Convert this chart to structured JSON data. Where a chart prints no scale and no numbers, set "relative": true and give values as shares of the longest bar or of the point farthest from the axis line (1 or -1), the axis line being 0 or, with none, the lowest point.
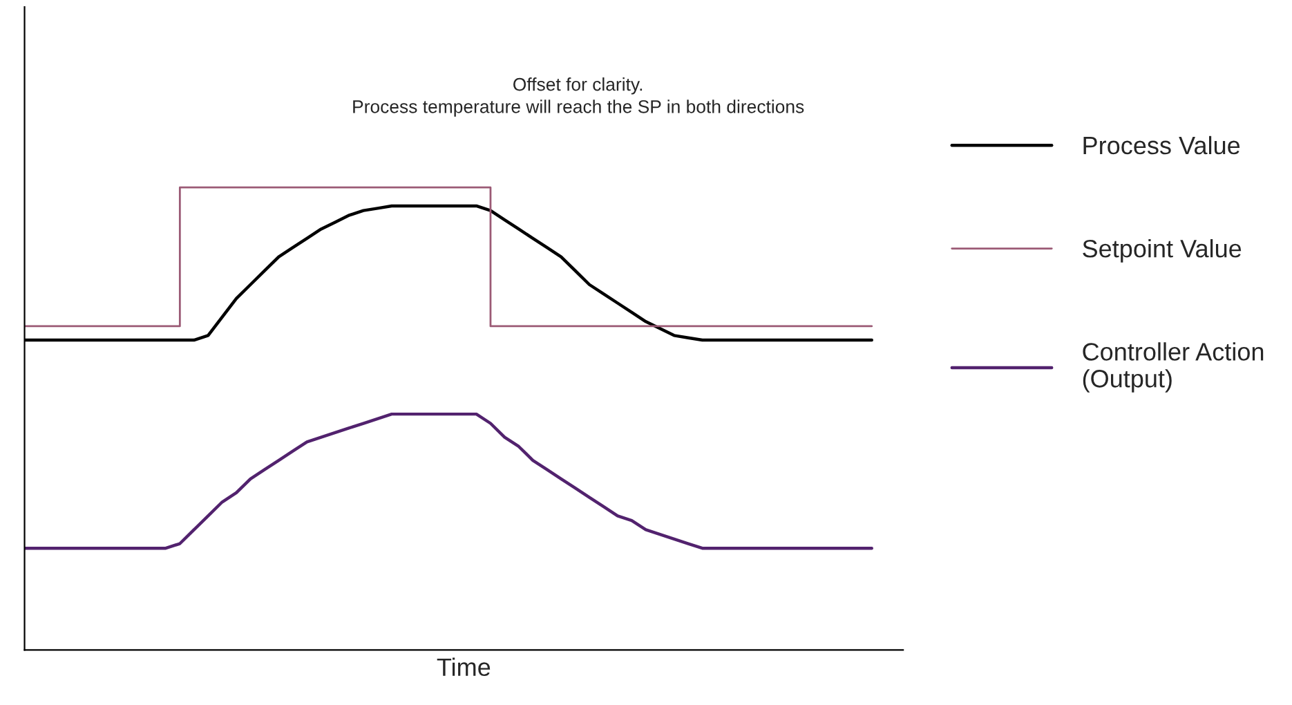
{
  "chart_data": {
    "type": "line",
    "relative": true,
    "xlabel": "Time",
    "annotations": [
      "Offset for clarity.\nProcess temperature will reach the SP in both directions"
    ],
    "categories": [
      null,
      null,
      null,
      null,
      null,
      null,
      null,
      null,
      null,
      null,
      null,
      null,
      null,
      null,
      null,
      null,
      null,
      null,
      null,
      null,
      null,
      null,
      null,
      null,
      null,
      null,
      null,
      null,
      null,
      null,
      null,
      null,
      null,
      null,
      null,
      null,
      null,
      null,
      null,
      null,
      null,
      null,
      null,
      null,
      null,
      null,
      null,
      null,
      null,
      null,
      null,
      null,
      null,
      null,
      null,
      null,
      null,
      null,
      null,
      null,
      null
    ],
    "legend": "right",
    "marker": "none",
    "line_style": "solid",
    "series": [
      {
        "name": "Process Value",
        "color": "#000000",
        "values": [
          0.67,
          0.67,
          0.67,
          0.67,
          0.67,
          0.67,
          0.67,
          0.67,
          0.67,
          0.67,
          0.67,
          0.67,
          0.67,
          0.68,
          0.72,
          0.76,
          0.79,
          0.82,
          0.85,
          0.87,
          0.89,
          0.91,
          0.925,
          0.94,
          0.95,
          0.955,
          0.96,
          0.96,
          0.96,
          0.96,
          0.96,
          0.96,
          0.96,
          0.95,
          0.93,
          0.91,
          0.89,
          0.87,
          0.85,
          0.82,
          0.79,
          0.77,
          0.75,
          0.73,
          0.71,
          0.695,
          0.68,
          0.675,
          0.67,
          0.67,
          0.67,
          0.67,
          0.67,
          0.67,
          0.67,
          0.67,
          0.67,
          0.67,
          0.67,
          0.67,
          0.67
        ]
      },
      {
        "name": "Setpoint Value",
        "color": "#9b5a75",
        "type": "step",
        "values": [
          0.7,
          0.7,
          0.7,
          0.7,
          0.7,
          0.7,
          0.7,
          0.7,
          0.7,
          0.7,
          0.7,
          1.0,
          1.0,
          1.0,
          1.0,
          1.0,
          1.0,
          1.0,
          1.0,
          1.0,
          1.0,
          1.0,
          1.0,
          1.0,
          1.0,
          1.0,
          1.0,
          1.0,
          1.0,
          1.0,
          1.0,
          1.0,
          1.0,
          0.7,
          0.7,
          0.7,
          0.7,
          0.7,
          0.7,
          0.7,
          0.7,
          0.7,
          0.7,
          0.7,
          0.7,
          0.7,
          0.7,
          0.7,
          0.7,
          0.7,
          0.7,
          0.7,
          0.7,
          0.7,
          0.7,
          0.7,
          0.7,
          0.7,
          0.7,
          0.7,
          0.7
        ]
      },
      {
        "name": "Controller Action\n(Output)",
        "color": "#52226e",
        "values": [
          0.22,
          0.22,
          0.22,
          0.22,
          0.22,
          0.22,
          0.22,
          0.22,
          0.22,
          0.22,
          0.22,
          0.23,
          0.26,
          0.29,
          0.32,
          0.34,
          0.37,
          0.39,
          0.41,
          0.43,
          0.45,
          0.46,
          0.47,
          0.48,
          0.49,
          0.5,
          0.51,
          0.51,
          0.51,
          0.51,
          0.51,
          0.51,
          0.51,
          0.49,
          0.46,
          0.44,
          0.41,
          0.39,
          0.37,
          0.35,
          0.33,
          0.31,
          0.29,
          0.28,
          0.26,
          0.25,
          0.24,
          0.23,
          0.22,
          0.22,
          0.22,
          0.22,
          0.22,
          0.22,
          0.22,
          0.22,
          0.22,
          0.22,
          0.22,
          0.22,
          0.22
        ]
      }
    ]
  }
}
